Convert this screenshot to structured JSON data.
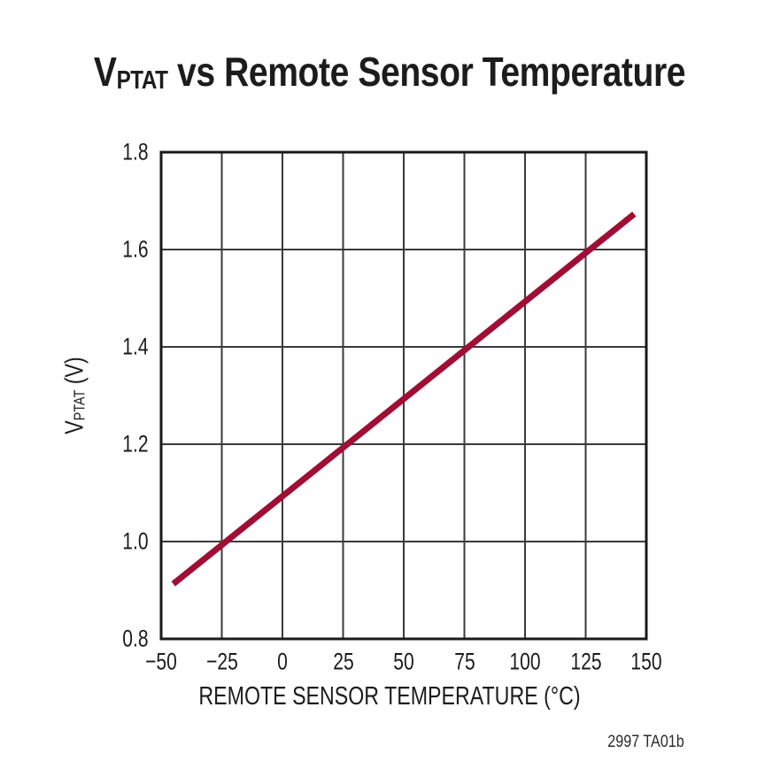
{
  "figure": {
    "note": "2997 TA01b",
    "colors": {
      "series": "#A00D35",
      "grid": "#3A3A3A",
      "frame": "#1A1A1A",
      "text": "#1C1C1C",
      "background": "#FFFFFF"
    }
  },
  "title": {
    "prefix": "V",
    "subscript": "PTAT",
    "rest": " vs Remote Sensor Temperature"
  },
  "chart_data": {
    "type": "line",
    "title": "VPTAT vs Remote Sensor Temperature",
    "xlabel": "REMOTE SENSOR TEMPERATURE (°C)",
    "ylabel": "VPTAT (V)",
    "ylabel_parts": {
      "prefix": "V",
      "subscript": "PTAT",
      "rest": " (V)"
    },
    "xlim": [
      -50,
      150
    ],
    "ylim": [
      0.8,
      1.8
    ],
    "xticks": [
      -50,
      -25,
      0,
      25,
      50,
      75,
      100,
      125,
      150
    ],
    "xtick_labels": [
      "−50",
      "−25",
      "0",
      "25",
      "50",
      "75",
      "100",
      "125",
      "150"
    ],
    "yticks": [
      0.8,
      1.0,
      1.2,
      1.4,
      1.6,
      1.8
    ],
    "ytick_labels": [
      "0.8",
      "1.0",
      "1.2",
      "1.4",
      "1.6",
      "1.8"
    ],
    "grid": true,
    "legend": "none",
    "series": [
      {
        "name": "VPTAT",
        "color": "#A00D35",
        "points": [
          [
            -45,
            0.913
          ],
          [
            145,
            1.673
          ]
        ]
      }
    ]
  }
}
